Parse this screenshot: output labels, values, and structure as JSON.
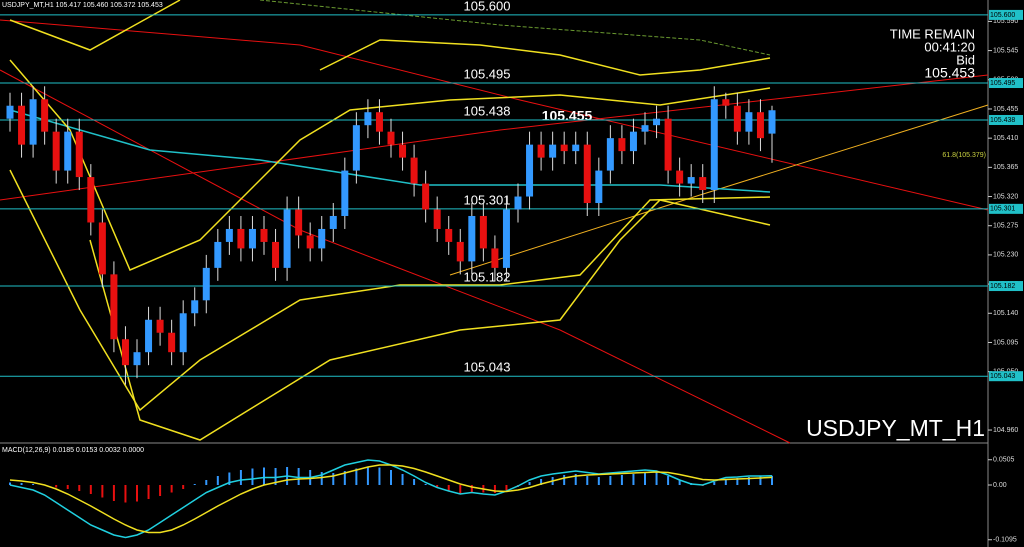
{
  "chart_data": [
    {
      "type": "candlestick",
      "header": "USDJPY_MT,H1  105.417 105.460 105.372 105.453",
      "title": "USDJPY_MT_H1",
      "time_remain_label": "TIME REMAIN",
      "time_remain": "00:41:20",
      "bid_label": "Bid",
      "bid": "105.453",
      "price_label": "105.455",
      "fib_labels": [
        "61.8(105.379)"
      ],
      "up_color": "#3399ff",
      "down_color": "#e81010",
      "level_color": "#20c0c8",
      "ylim": [
        104.94,
        105.623
      ],
      "yticks": [
        {
          "value": 105.59,
          "label": "105.590"
        },
        105.545,
        {
          "value": 105.5,
          "label": "105.500"
        },
        105.455,
        {
          "value": 105.41,
          "label": "105.410"
        },
        105.365,
        {
          "value": 105.32,
          "label": "105.320"
        },
        105.275,
        {
          "value": 105.23,
          "label": "105.230"
        },
        105.185,
        {
          "value": 105.14,
          "label": "105.140"
        },
        105.095,
        {
          "value": 105.05,
          "label": "105.050"
        },
        {
          "value": 104.96,
          "label": "104.960"
        }
      ],
      "levels": [
        {
          "value": 105.6,
          "label": "105.600"
        },
        {
          "value": 105.495,
          "label": "105.495"
        },
        {
          "value": 105.438,
          "label": "105.438"
        },
        {
          "value": 105.301,
          "label": "105.301"
        },
        {
          "value": 105.182,
          "label": "105.182"
        },
        {
          "value": 105.043,
          "label": "105.043"
        }
      ],
      "open": [
        105.44,
        105.46,
        105.4,
        105.47,
        105.42,
        105.36,
        105.42,
        105.35,
        105.28,
        105.2,
        105.1,
        105.06,
        105.08,
        105.13,
        105.11,
        105.08,
        105.14,
        105.16,
        105.21,
        105.25,
        105.27,
        105.24,
        105.27,
        105.25,
        105.21,
        105.3,
        105.26,
        105.24,
        105.27,
        105.29,
        105.36,
        105.43,
        105.45,
        105.42,
        105.4,
        105.38,
        105.34,
        105.3,
        105.27,
        105.25,
        105.22,
        105.29,
        105.24,
        105.21,
        105.3,
        105.32,
        105.4,
        105.38,
        105.4,
        105.39,
        105.4,
        105.31,
        105.36,
        105.41,
        105.39,
        105.42,
        105.43,
        105.44,
        105.36,
        105.34,
        105.35,
        105.33,
        105.47,
        105.46,
        105.42,
        105.45,
        105.417
      ],
      "high": [
        105.48,
        105.48,
        105.49,
        105.49,
        105.44,
        105.44,
        105.44,
        105.37,
        105.3,
        105.22,
        105.12,
        105.1,
        105.15,
        105.15,
        105.13,
        105.16,
        105.18,
        105.23,
        105.27,
        105.29,
        105.29,
        105.29,
        105.29,
        105.27,
        105.32,
        105.32,
        105.28,
        105.29,
        105.31,
        105.38,
        105.45,
        105.47,
        105.47,
        105.44,
        105.42,
        105.4,
        105.36,
        105.32,
        105.29,
        105.27,
        105.31,
        105.31,
        105.26,
        105.32,
        105.34,
        105.42,
        105.42,
        105.42,
        105.42,
        105.42,
        105.42,
        105.38,
        105.43,
        105.43,
        105.44,
        105.45,
        105.46,
        105.46,
        105.38,
        105.37,
        105.37,
        105.49,
        105.48,
        105.48,
        105.47,
        105.47,
        105.46
      ],
      "low": [
        105.42,
        105.38,
        105.38,
        105.4,
        105.34,
        105.34,
        105.33,
        105.26,
        105.18,
        105.08,
        105.03,
        105.04,
        105.06,
        105.09,
        105.06,
        105.06,
        105.12,
        105.14,
        105.19,
        105.23,
        105.22,
        105.22,
        105.23,
        105.19,
        105.19,
        105.24,
        105.22,
        105.22,
        105.25,
        105.27,
        105.34,
        105.41,
        105.4,
        105.38,
        105.36,
        105.32,
        105.28,
        105.25,
        105.23,
        105.2,
        105.2,
        105.22,
        105.19,
        105.19,
        105.28,
        105.3,
        105.36,
        105.36,
        105.37,
        105.37,
        105.29,
        105.29,
        105.34,
        105.37,
        105.37,
        105.4,
        105.41,
        105.34,
        105.32,
        105.32,
        105.31,
        105.31,
        105.44,
        105.4,
        105.4,
        105.39,
        105.372
      ],
      "close": [
        105.46,
        105.4,
        105.47,
        105.42,
        105.36,
        105.42,
        105.35,
        105.28,
        105.2,
        105.1,
        105.06,
        105.08,
        105.13,
        105.11,
        105.08,
        105.14,
        105.16,
        105.21,
        105.25,
        105.27,
        105.24,
        105.27,
        105.25,
        105.21,
        105.3,
        105.26,
        105.24,
        105.27,
        105.29,
        105.36,
        105.43,
        105.45,
        105.42,
        105.4,
        105.38,
        105.34,
        105.3,
        105.27,
        105.25,
        105.22,
        105.29,
        105.24,
        105.21,
        105.3,
        105.32,
        105.4,
        105.38,
        105.4,
        105.39,
        105.4,
        105.31,
        105.36,
        105.41,
        105.39,
        105.42,
        105.43,
        105.44,
        105.36,
        105.34,
        105.35,
        105.33,
        105.47,
        105.46,
        105.42,
        105.45,
        105.41,
        105.453
      ]
    },
    {
      "type": "macd",
      "header": "MACD(12,26,9) 0.0185 0.0153 0.0032 0.0000",
      "ylim": [
        0.06,
        -0.12
      ],
      "yticks": [
        0.0505,
        {
          "value": 0,
          "label": "0.00"
        },
        -0.1095
      ],
      "histogram": [
        0.005,
        0.004,
        0.002,
        0,
        -0.005,
        -0.008,
        -0.012,
        -0.018,
        -0.025,
        -0.032,
        -0.035,
        -0.033,
        -0.028,
        -0.022,
        -0.015,
        -0.008,
        0.002,
        0.01,
        0.018,
        0.025,
        0.03,
        0.033,
        0.035,
        0.034,
        0.036,
        0.034,
        0.03,
        0.026,
        0.024,
        0.028,
        0.033,
        0.036,
        0.035,
        0.03,
        0.022,
        0.012,
        0.002,
        -0.006,
        -0.012,
        -0.017,
        -0.016,
        -0.015,
        -0.016,
        -0.01,
        -0.004,
        0.006,
        0.012,
        0.016,
        0.02,
        0.022,
        0.018,
        0.016,
        0.018,
        0.02,
        0.022,
        0.024,
        0.025,
        0.018,
        0.01,
        0.004,
        -0.002,
        0.006,
        0.012,
        0.014,
        0.016,
        0.017,
        0.0185
      ],
      "series": [
        {
          "color": "#20d0e0",
          "values": [
            0.0,
            -0.005,
            -0.01,
            -0.02,
            -0.035,
            -0.05,
            -0.065,
            -0.08,
            -0.09,
            -0.1,
            -0.105,
            -0.1,
            -0.09,
            -0.075,
            -0.06,
            -0.045,
            -0.03,
            -0.015,
            -0.005,
            0.005,
            0.01,
            0.012,
            0.015,
            0.015,
            0.018,
            0.015,
            0.015,
            0.02,
            0.03,
            0.04,
            0.045,
            0.05,
            0.048,
            0.04,
            0.03,
            0.018,
            0.005,
            -0.005,
            -0.012,
            -0.018,
            -0.015,
            -0.018,
            -0.02,
            -0.012,
            -0.002,
            0.01,
            0.018,
            0.022,
            0.025,
            0.028,
            0.025,
            0.022,
            0.024,
            0.026,
            0.028,
            0.03,
            0.028,
            0.02,
            0.01,
            0.002,
            0.0,
            0.008,
            0.015,
            0.016,
            0.018,
            0.018,
            0.0185
          ]
        },
        {
          "color": "#f0e020",
          "values": [
            0.01,
            0.008,
            0.005,
            0.0,
            -0.008,
            -0.018,
            -0.03,
            -0.042,
            -0.055,
            -0.068,
            -0.08,
            -0.09,
            -0.095,
            -0.095,
            -0.09,
            -0.08,
            -0.068,
            -0.055,
            -0.042,
            -0.03,
            -0.018,
            -0.008,
            0.0,
            0.005,
            0.01,
            0.012,
            0.013,
            0.015,
            0.018,
            0.024,
            0.03,
            0.036,
            0.04,
            0.04,
            0.038,
            0.033,
            0.026,
            0.018,
            0.01,
            0.002,
            -0.004,
            -0.008,
            -0.012,
            -0.013,
            -0.01,
            -0.005,
            0.002,
            0.008,
            0.014,
            0.018,
            0.02,
            0.021,
            0.022,
            0.023,
            0.024,
            0.025,
            0.026,
            0.025,
            0.021,
            0.016,
            0.011,
            0.01,
            0.011,
            0.012,
            0.013,
            0.014,
            0.0153
          ]
        }
      ]
    }
  ]
}
